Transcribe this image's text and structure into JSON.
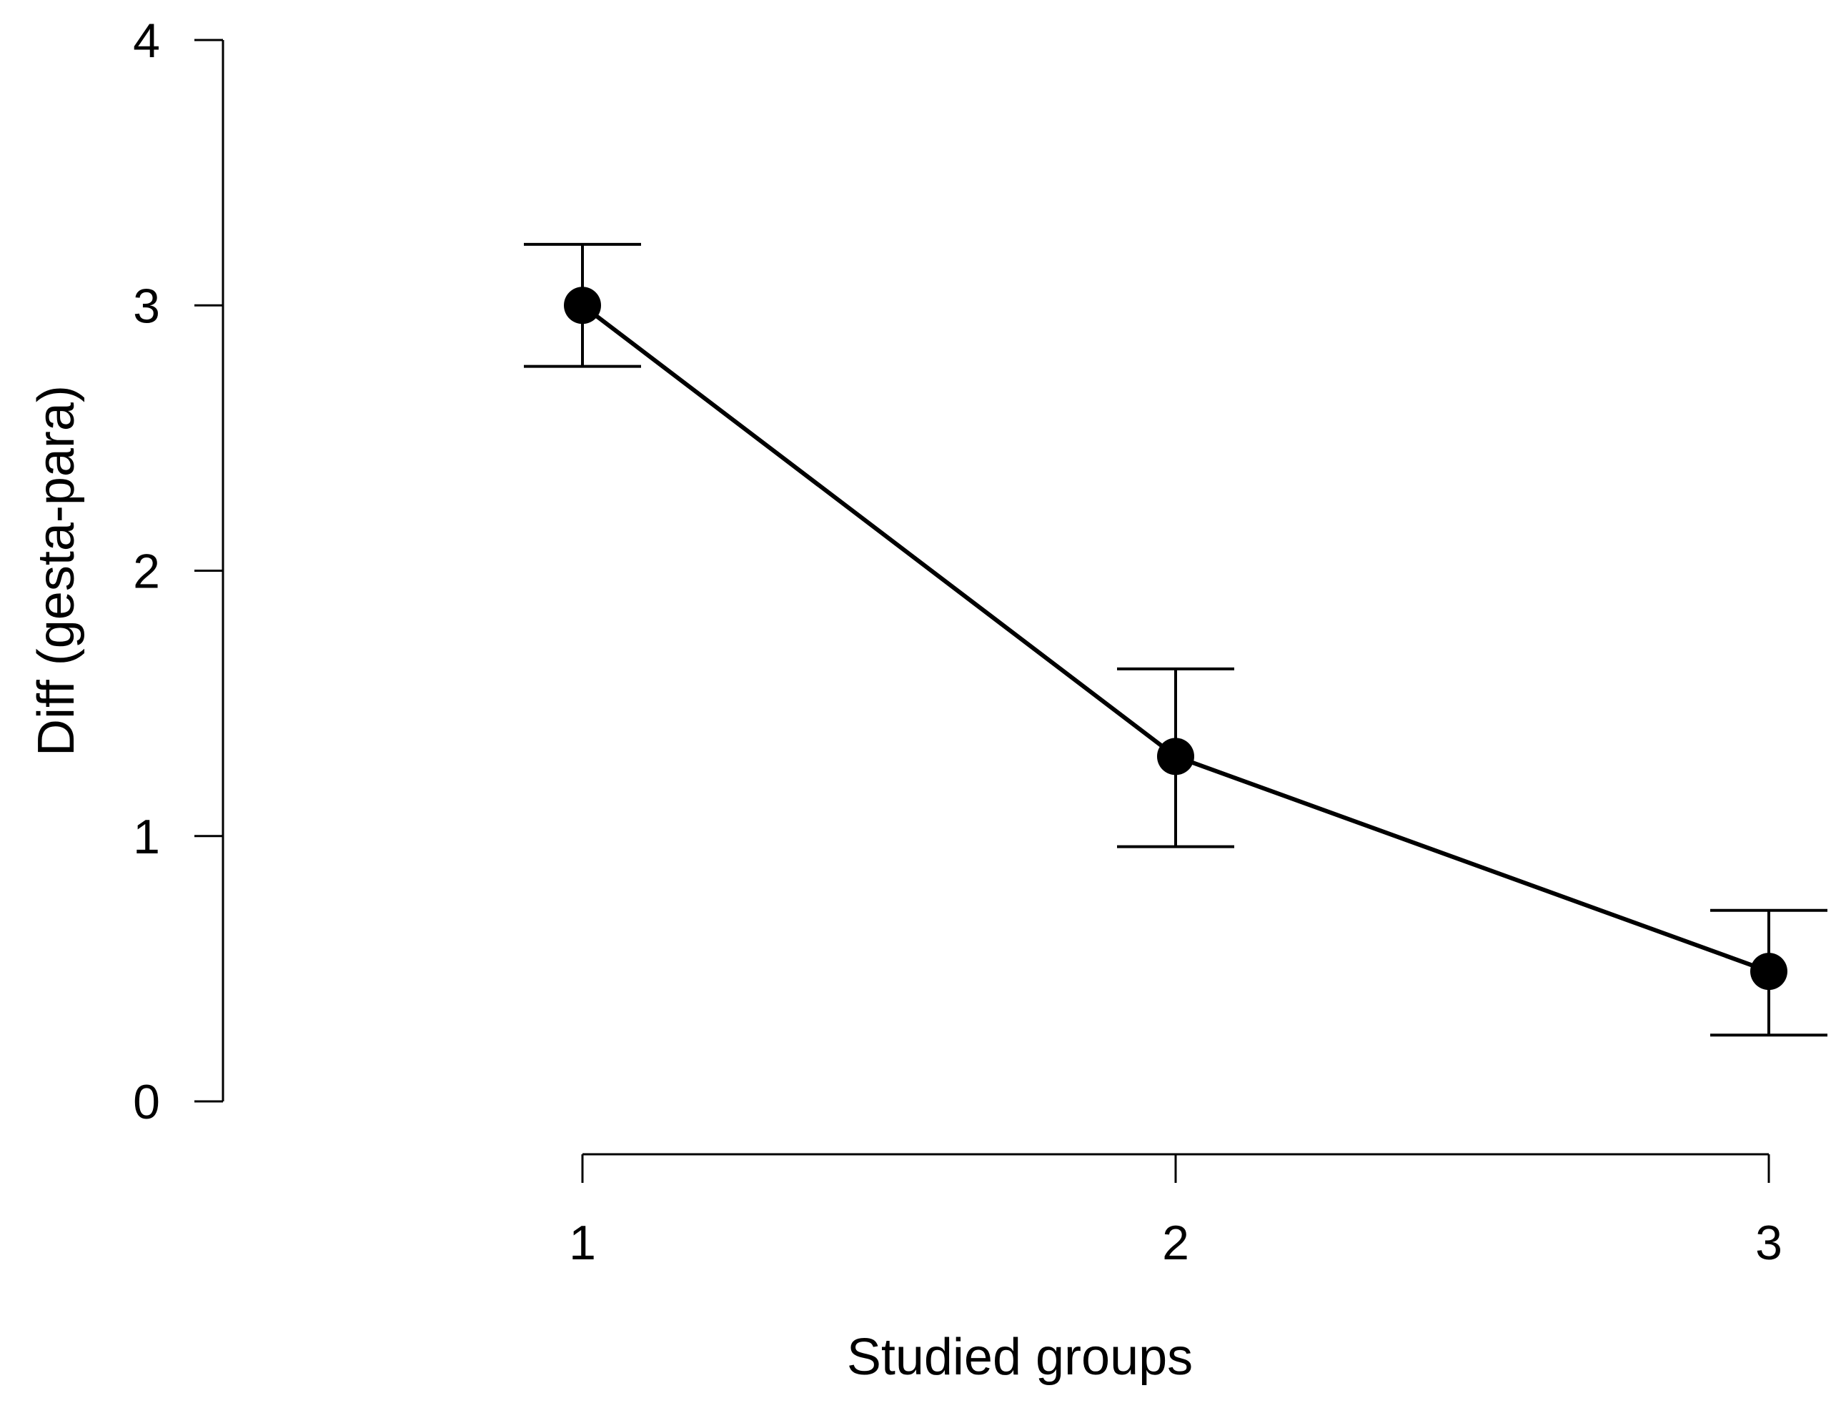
{
  "chart_data": {
    "type": "line",
    "title": "",
    "xlabel": "Studied groups",
    "ylabel": "Diff (gesta-para)",
    "x": [
      1,
      2,
      3
    ],
    "x_tick_labels": [
      "1",
      "2",
      "3"
    ],
    "y_ticks": [
      0,
      1,
      2,
      3,
      4
    ],
    "y_tick_labels": [
      "0",
      "1",
      "2",
      "3",
      "4"
    ],
    "ylim": [
      0,
      4
    ],
    "xlim": [
      1,
      3
    ],
    "grid": false,
    "series": [
      {
        "values": [
          3.0,
          1.3,
          0.49
        ],
        "error_lower": [
          2.77,
          0.96,
          0.25
        ],
        "error_upper": [
          3.23,
          1.63,
          0.72
        ]
      }
    ],
    "colors": {
      "line": "#000000",
      "point": "#000000",
      "axis": "#000000"
    }
  }
}
